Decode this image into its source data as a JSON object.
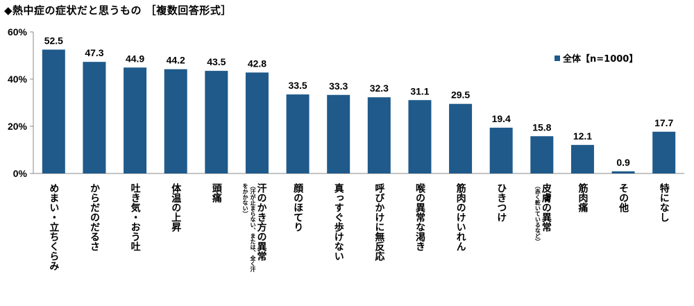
{
  "chart_data": {
    "type": "bar",
    "title": "◆熱中症の症状だと思うもの ［複数回答形式］",
    "ylim": [
      0,
      60
    ],
    "yticks": [
      "0%",
      "20%",
      "40%",
      "60%"
    ],
    "ytick_values": [
      0,
      20,
      40,
      60
    ],
    "grid": false,
    "legend_position": "top-right",
    "series": [
      {
        "name": "全体【n=1000】",
        "values": [
          52.5,
          47.3,
          44.9,
          44.2,
          43.5,
          42.8,
          33.5,
          33.3,
          32.3,
          31.1,
          29.5,
          19.4,
          15.8,
          12.1,
          0.9,
          17.7
        ]
      }
    ],
    "categories": [
      "めまい・立ちくらみ",
      "からだのだるさ",
      "吐き気・おう吐",
      "体温の上昇",
      "頭痛",
      "汗のかき方の異常",
      "顔のほてり",
      "真っすぐ歩けない",
      "呼びかけに無反応",
      "喉の異常な渇き",
      "筋肉のけいれん",
      "ひきつけ",
      "皮膚の異常",
      "筋肉痛",
      "その他",
      "特になし"
    ],
    "category_notes": [
      "",
      "",
      "",
      "",
      "",
      "（汗が止まらない、または、全く汗をかかない）",
      "",
      "",
      "",
      "",
      "",
      "",
      "（赤く乾いているなど）",
      "",
      "",
      ""
    ],
    "bar_color": "#1f5a8b"
  }
}
